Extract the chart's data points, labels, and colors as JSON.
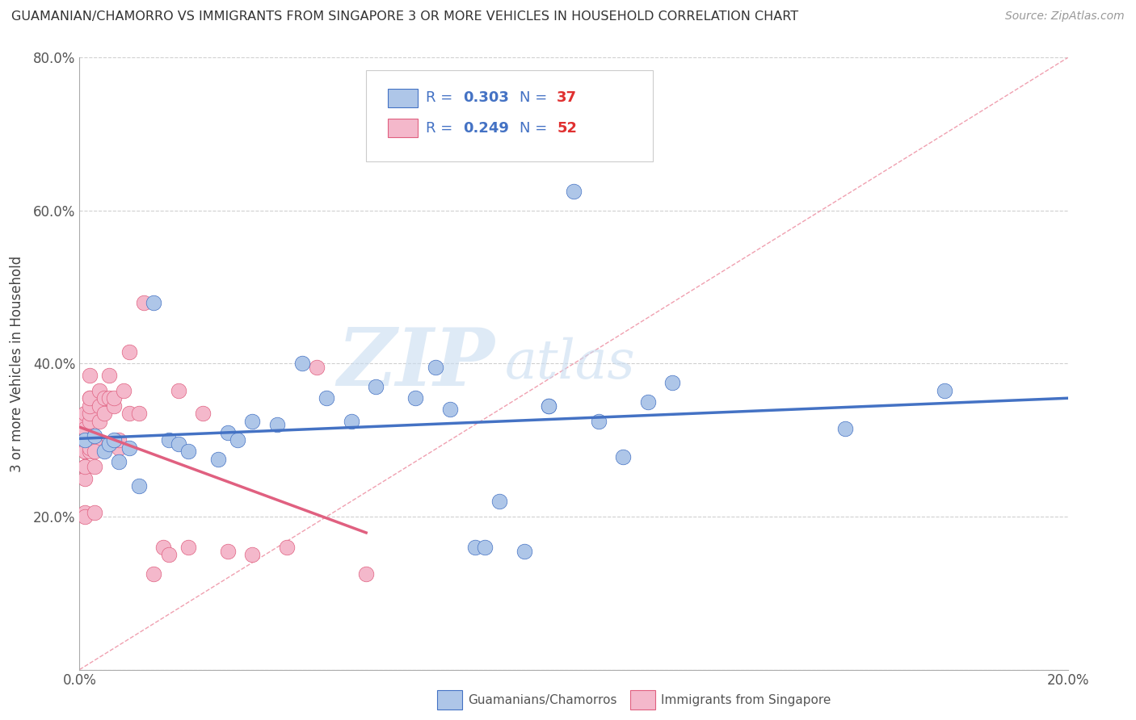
{
  "title": "GUAMANIAN/CHAMORRO VS IMMIGRANTS FROM SINGAPORE 3 OR MORE VEHICLES IN HOUSEHOLD CORRELATION CHART",
  "source": "Source: ZipAtlas.com",
  "ylabel": "3 or more Vehicles in Household",
  "xlim": [
    0.0,
    0.2
  ],
  "ylim": [
    0.0,
    0.8
  ],
  "x_tick_positions": [
    0.0,
    0.04,
    0.08,
    0.12,
    0.16,
    0.2
  ],
  "x_tick_labels": [
    "0.0%",
    "",
    "",
    "",
    "",
    "20.0%"
  ],
  "y_tick_positions": [
    0.0,
    0.2,
    0.4,
    0.6,
    0.8
  ],
  "y_tick_labels": [
    "",
    "20.0%",
    "40.0%",
    "60.0%",
    "80.0%"
  ],
  "blue_R": "0.303",
  "blue_N": "37",
  "pink_R": "0.249",
  "pink_N": "52",
  "blue_color": "#aec6e8",
  "pink_color": "#f4b8cb",
  "blue_line_color": "#4472c4",
  "pink_line_color": "#e06080",
  "diagonal_color": "#f0a0b0",
  "watermark_zip": "ZIP",
  "watermark_atlas": "atlas",
  "blue_scatter_x": [
    0.001,
    0.003,
    0.005,
    0.006,
    0.007,
    0.008,
    0.01,
    0.012,
    0.015,
    0.018,
    0.02,
    0.022,
    0.028,
    0.03,
    0.032,
    0.035,
    0.04,
    0.045,
    0.05,
    0.055,
    0.06,
    0.068,
    0.072,
    0.075,
    0.08,
    0.082,
    0.085,
    0.09,
    0.095,
    0.095,
    0.1,
    0.105,
    0.11,
    0.115,
    0.12,
    0.155,
    0.175
  ],
  "blue_scatter_y": [
    0.3,
    0.305,
    0.285,
    0.295,
    0.3,
    0.272,
    0.29,
    0.24,
    0.48,
    0.3,
    0.295,
    0.285,
    0.275,
    0.31,
    0.3,
    0.325,
    0.32,
    0.4,
    0.355,
    0.325,
    0.37,
    0.355,
    0.395,
    0.34,
    0.16,
    0.16,
    0.22,
    0.155,
    0.345,
    0.345,
    0.625,
    0.325,
    0.278,
    0.35,
    0.375,
    0.315,
    0.365
  ],
  "pink_scatter_x": [
    0.001,
    0.001,
    0.001,
    0.001,
    0.001,
    0.001,
    0.001,
    0.001,
    0.001,
    0.001,
    0.001,
    0.001,
    0.002,
    0.002,
    0.002,
    0.002,
    0.002,
    0.002,
    0.002,
    0.002,
    0.002,
    0.003,
    0.003,
    0.003,
    0.003,
    0.004,
    0.004,
    0.004,
    0.005,
    0.005,
    0.006,
    0.006,
    0.007,
    0.007,
    0.008,
    0.008,
    0.009,
    0.01,
    0.01,
    0.012,
    0.013,
    0.015,
    0.017,
    0.018,
    0.02,
    0.022,
    0.025,
    0.03,
    0.035,
    0.042,
    0.048,
    0.058
  ],
  "pink_scatter_y": [
    0.295,
    0.265,
    0.25,
    0.285,
    0.325,
    0.335,
    0.3,
    0.315,
    0.285,
    0.265,
    0.205,
    0.2,
    0.285,
    0.325,
    0.335,
    0.3,
    0.355,
    0.385,
    0.345,
    0.355,
    0.29,
    0.3,
    0.285,
    0.265,
    0.205,
    0.325,
    0.345,
    0.365,
    0.355,
    0.335,
    0.355,
    0.385,
    0.345,
    0.355,
    0.29,
    0.3,
    0.365,
    0.335,
    0.415,
    0.335,
    0.48,
    0.125,
    0.16,
    0.15,
    0.365,
    0.16,
    0.335,
    0.155,
    0.15,
    0.16,
    0.395,
    0.125
  ]
}
